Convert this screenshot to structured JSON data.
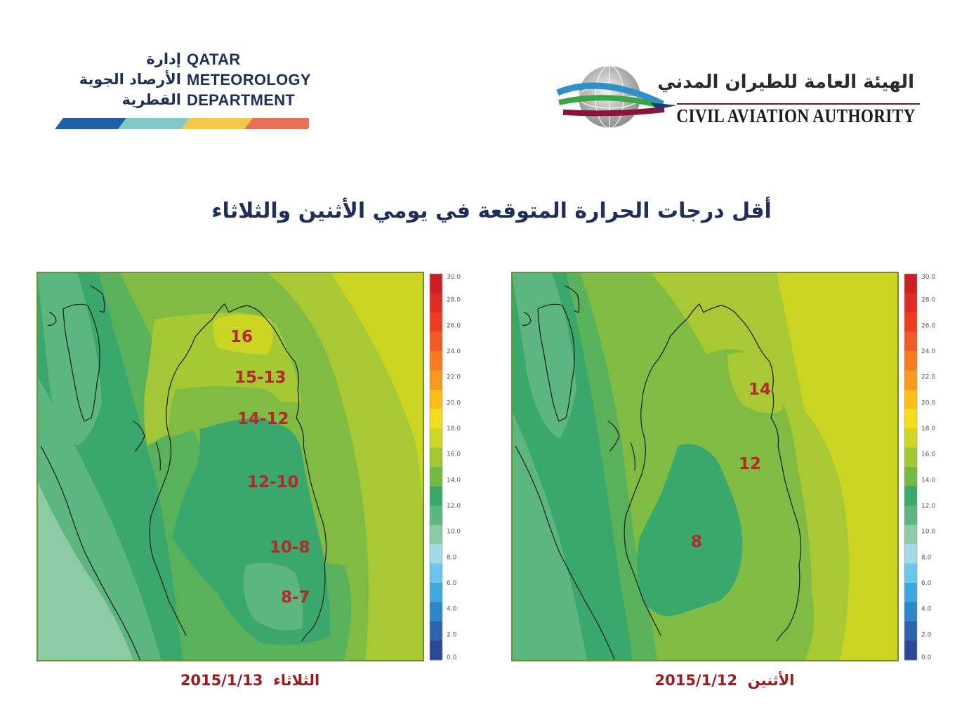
{
  "header": {
    "qmd": {
      "arabic_lines": [
        "إدارة",
        "الأرصاد الجوية",
        "القطرية"
      ],
      "english_lines": [
        "QATAR",
        "METEOROLOGY",
        "DEPARTMENT"
      ],
      "stripe_colors": [
        "#1f5fa8",
        "#7fc9c6",
        "#f2c84b",
        "#ea6f5a"
      ]
    },
    "caa": {
      "arabic_name": "الهيئة العامة للطيران المدني",
      "english_name": "CIVIL AVIATION AUTHORITY",
      "icon": "globe-plane-icon"
    }
  },
  "title": "أقل درجات الحرارة المتوقعة في يومي الأثنين والثلاثاء",
  "colorbar": {
    "ticks": [
      "30.0",
      "28.0",
      "26.0",
      "24.0",
      "22.0",
      "20.0",
      "18.0",
      "16.0",
      "14.0",
      "12.0",
      "10.0",
      "8.0",
      "6.0",
      "4.0",
      "2.0",
      "0.0"
    ],
    "colors": [
      "#cc1f25",
      "#e02a24",
      "#ec3d22",
      "#f05a24",
      "#f47b20",
      "#f79a1f",
      "#fbbd18",
      "#f2de1a",
      "#cfd725",
      "#a2c834",
      "#72b843",
      "#3aa76b",
      "#5db57f",
      "#8ccba5",
      "#a4d9e8",
      "#6cc5eb",
      "#3fa9df",
      "#2f86c8",
      "#2d64ae",
      "#2c4796"
    ]
  },
  "maps": [
    {
      "day": "الثلاثاء",
      "date": "2015/1/13",
      "labels": [
        "16",
        "15-13",
        "14-12",
        "12-10",
        "10-8",
        "8-7"
      ]
    },
    {
      "day": "الأثنين",
      "date": "2015/1/12",
      "labels": [
        "14",
        "12",
        "8"
      ]
    }
  ]
}
